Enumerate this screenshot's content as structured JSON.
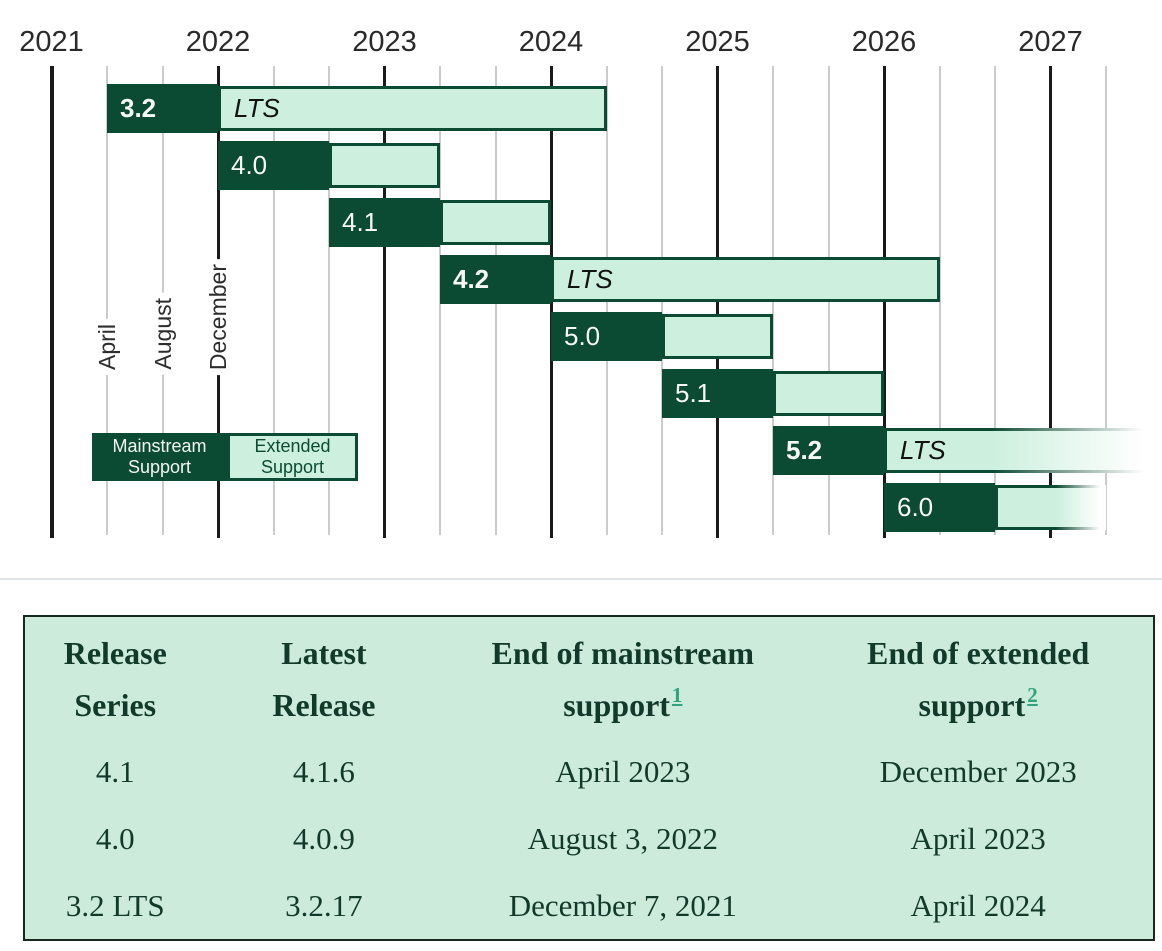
{
  "colors": {
    "dark_green": "#0C4B33",
    "light_green": "#CDF0DE",
    "table_background": "#CDEBDB",
    "table_text": "#123A2A",
    "footnote_link_green": "#2FA37C",
    "grid_minor": "#CBCBCB",
    "grid_major": "#1A1A1A",
    "bar_label_text": "#F8F8F6",
    "lts_label_text": "#121210"
  },
  "chart_data": [
    {
      "type": "gantt-timeline",
      "title": "",
      "x_axis": {
        "years": [
          "2021",
          "2022",
          "2023",
          "2024",
          "2025",
          "2026",
          "2027"
        ],
        "year_lines_mark": "December of previous year",
        "month_gridlines": [
          "April",
          "August",
          "December"
        ],
        "grid": true
      },
      "legend": {
        "position": "left-middle",
        "mainstream_label": "Mainstream Support",
        "extended_label": "Extended Support"
      },
      "lts_label": "LTS",
      "series": [
        {
          "version": "3.2",
          "lts": true,
          "mainstream_start": "Apr 2021",
          "mainstream_end": "Dec 2021",
          "extended_end": "Apr 2024",
          "fade_right": false
        },
        {
          "version": "4.0",
          "lts": false,
          "mainstream_start": "Dec 2021",
          "mainstream_end": "Aug 2022",
          "extended_end": "Apr 2023",
          "fade_right": false
        },
        {
          "version": "4.1",
          "lts": false,
          "mainstream_start": "Aug 2022",
          "mainstream_end": "Apr 2023",
          "extended_end": "Dec 2023",
          "fade_right": false
        },
        {
          "version": "4.2",
          "lts": true,
          "mainstream_start": "Apr 2023",
          "mainstream_end": "Dec 2023",
          "extended_end": "Apr 2026",
          "fade_right": false
        },
        {
          "version": "5.0",
          "lts": false,
          "mainstream_start": "Dec 2023",
          "mainstream_end": "Aug 2024",
          "extended_end": "Apr 2025",
          "fade_right": false
        },
        {
          "version": "5.1",
          "lts": false,
          "mainstream_start": "Aug 2024",
          "mainstream_end": "Apr 2025",
          "extended_end": "Dec 2025",
          "fade_right": false
        },
        {
          "version": "5.2",
          "lts": true,
          "mainstream_start": "Apr 2025",
          "mainstream_end": "Dec 2025",
          "extended_end": "off-chart",
          "fade_right": true,
          "fade_width": 172
        },
        {
          "version": "6.0",
          "lts": false,
          "mainstream_start": "Dec 2025",
          "mainstream_end": "Aug 2026",
          "extended_end": "Apr 2027",
          "fade_right": true,
          "fade_width": 50
        }
      ]
    },
    {
      "type": "table",
      "columns": [
        {
          "line1": "Release",
          "line2": "Series",
          "sup": null
        },
        {
          "line1": "Latest",
          "line2": "Release",
          "sup": null
        },
        {
          "line1": "End of mainstream",
          "line2": "support",
          "sup": "1"
        },
        {
          "line1": "End of extended",
          "line2": "support",
          "sup": "2"
        }
      ],
      "column_widths_pct": [
        16,
        21,
        32,
        31
      ],
      "rows": [
        [
          "4.1",
          "4.1.6",
          "April 2023",
          "December 2023"
        ],
        [
          "4.0",
          "4.0.9",
          "August 3, 2022",
          "April 2023"
        ],
        [
          "3.2 LTS",
          "3.2.17",
          "December 7, 2021",
          "April 2024"
        ]
      ]
    }
  ]
}
